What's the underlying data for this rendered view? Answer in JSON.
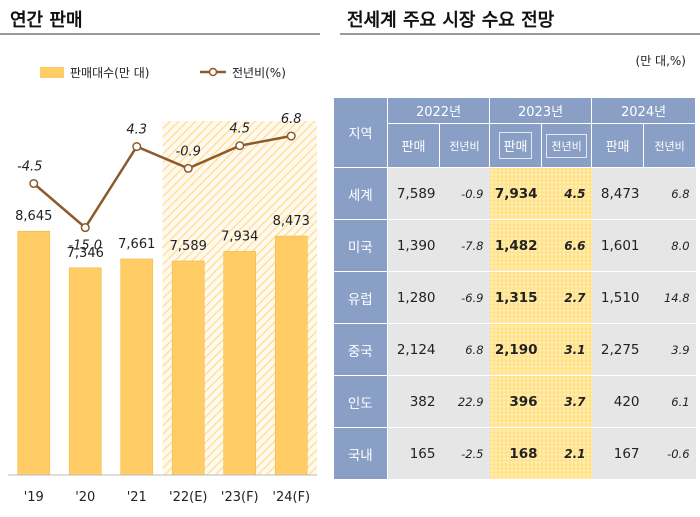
{
  "left_title": "연간 판매",
  "right_title": "전세계 주요 시장 수요 전망",
  "colors": {
    "bar": "#ffcc66",
    "line": "#8c5a2b",
    "forecast_bg": "#fff1cc",
    "header": "#8a9fc6",
    "row_bg": "#e6e6e6",
    "highlight": "#ffe28a"
  },
  "chart_data": {
    "type": "bar",
    "title": "연간 판매",
    "categories": [
      "'19",
      "'20",
      "'21",
      "'22(E)",
      "'23(F)",
      "'24(F)"
    ],
    "series": [
      {
        "name": "판매대수(만 대)",
        "type": "bar",
        "values": [
          8645,
          7346,
          7661,
          7589,
          7934,
          8473
        ],
        "labels": [
          "8,645",
          "7,346",
          "7,661",
          "7,589",
          "7,934",
          "8,473"
        ]
      },
      {
        "name": "전년비(%)",
        "type": "line",
        "values": [
          -4.5,
          -15.0,
          4.3,
          -0.9,
          4.5,
          6.8
        ],
        "labels": [
          "-4.5",
          "-15.0",
          "4.3",
          "-0.9",
          "4.5",
          "6.8"
        ]
      }
    ],
    "forecast_start_category": "'22(E)",
    "bar_ylim": [
      0,
      16000
    ],
    "line_ylim": [
      -17,
      8
    ]
  },
  "table": {
    "unit": "(만 대,%)",
    "region_header": "지역",
    "years": [
      "2022년",
      "2023년",
      "2024년"
    ],
    "sub_headers": [
      "판매",
      "전년비"
    ],
    "highlight_year": "2023년",
    "rows": [
      {
        "region": "세계",
        "cells": [
          [
            "7,589",
            "-0.9"
          ],
          [
            "7,934",
            "4.5"
          ],
          [
            "8,473",
            "6.8"
          ]
        ]
      },
      {
        "region": "미국",
        "cells": [
          [
            "1,390",
            "-7.8"
          ],
          [
            "1,482",
            "6.6"
          ],
          [
            "1,601",
            "8.0"
          ]
        ]
      },
      {
        "region": "유럽",
        "cells": [
          [
            "1,280",
            "-6.9"
          ],
          [
            "1,315",
            "2.7"
          ],
          [
            "1,510",
            "14.8"
          ]
        ]
      },
      {
        "region": "중국",
        "cells": [
          [
            "2,124",
            "6.8"
          ],
          [
            "2,190",
            "3.1"
          ],
          [
            "2,275",
            "3.9"
          ]
        ]
      },
      {
        "region": "인도",
        "cells": [
          [
            "382",
            "22.9"
          ],
          [
            "396",
            "3.7"
          ],
          [
            "420",
            "6.1"
          ]
        ]
      },
      {
        "region": "국내",
        "cells": [
          [
            "165",
            "-2.5"
          ],
          [
            "168",
            "2.1"
          ],
          [
            "167",
            "-0.6"
          ]
        ]
      }
    ]
  }
}
